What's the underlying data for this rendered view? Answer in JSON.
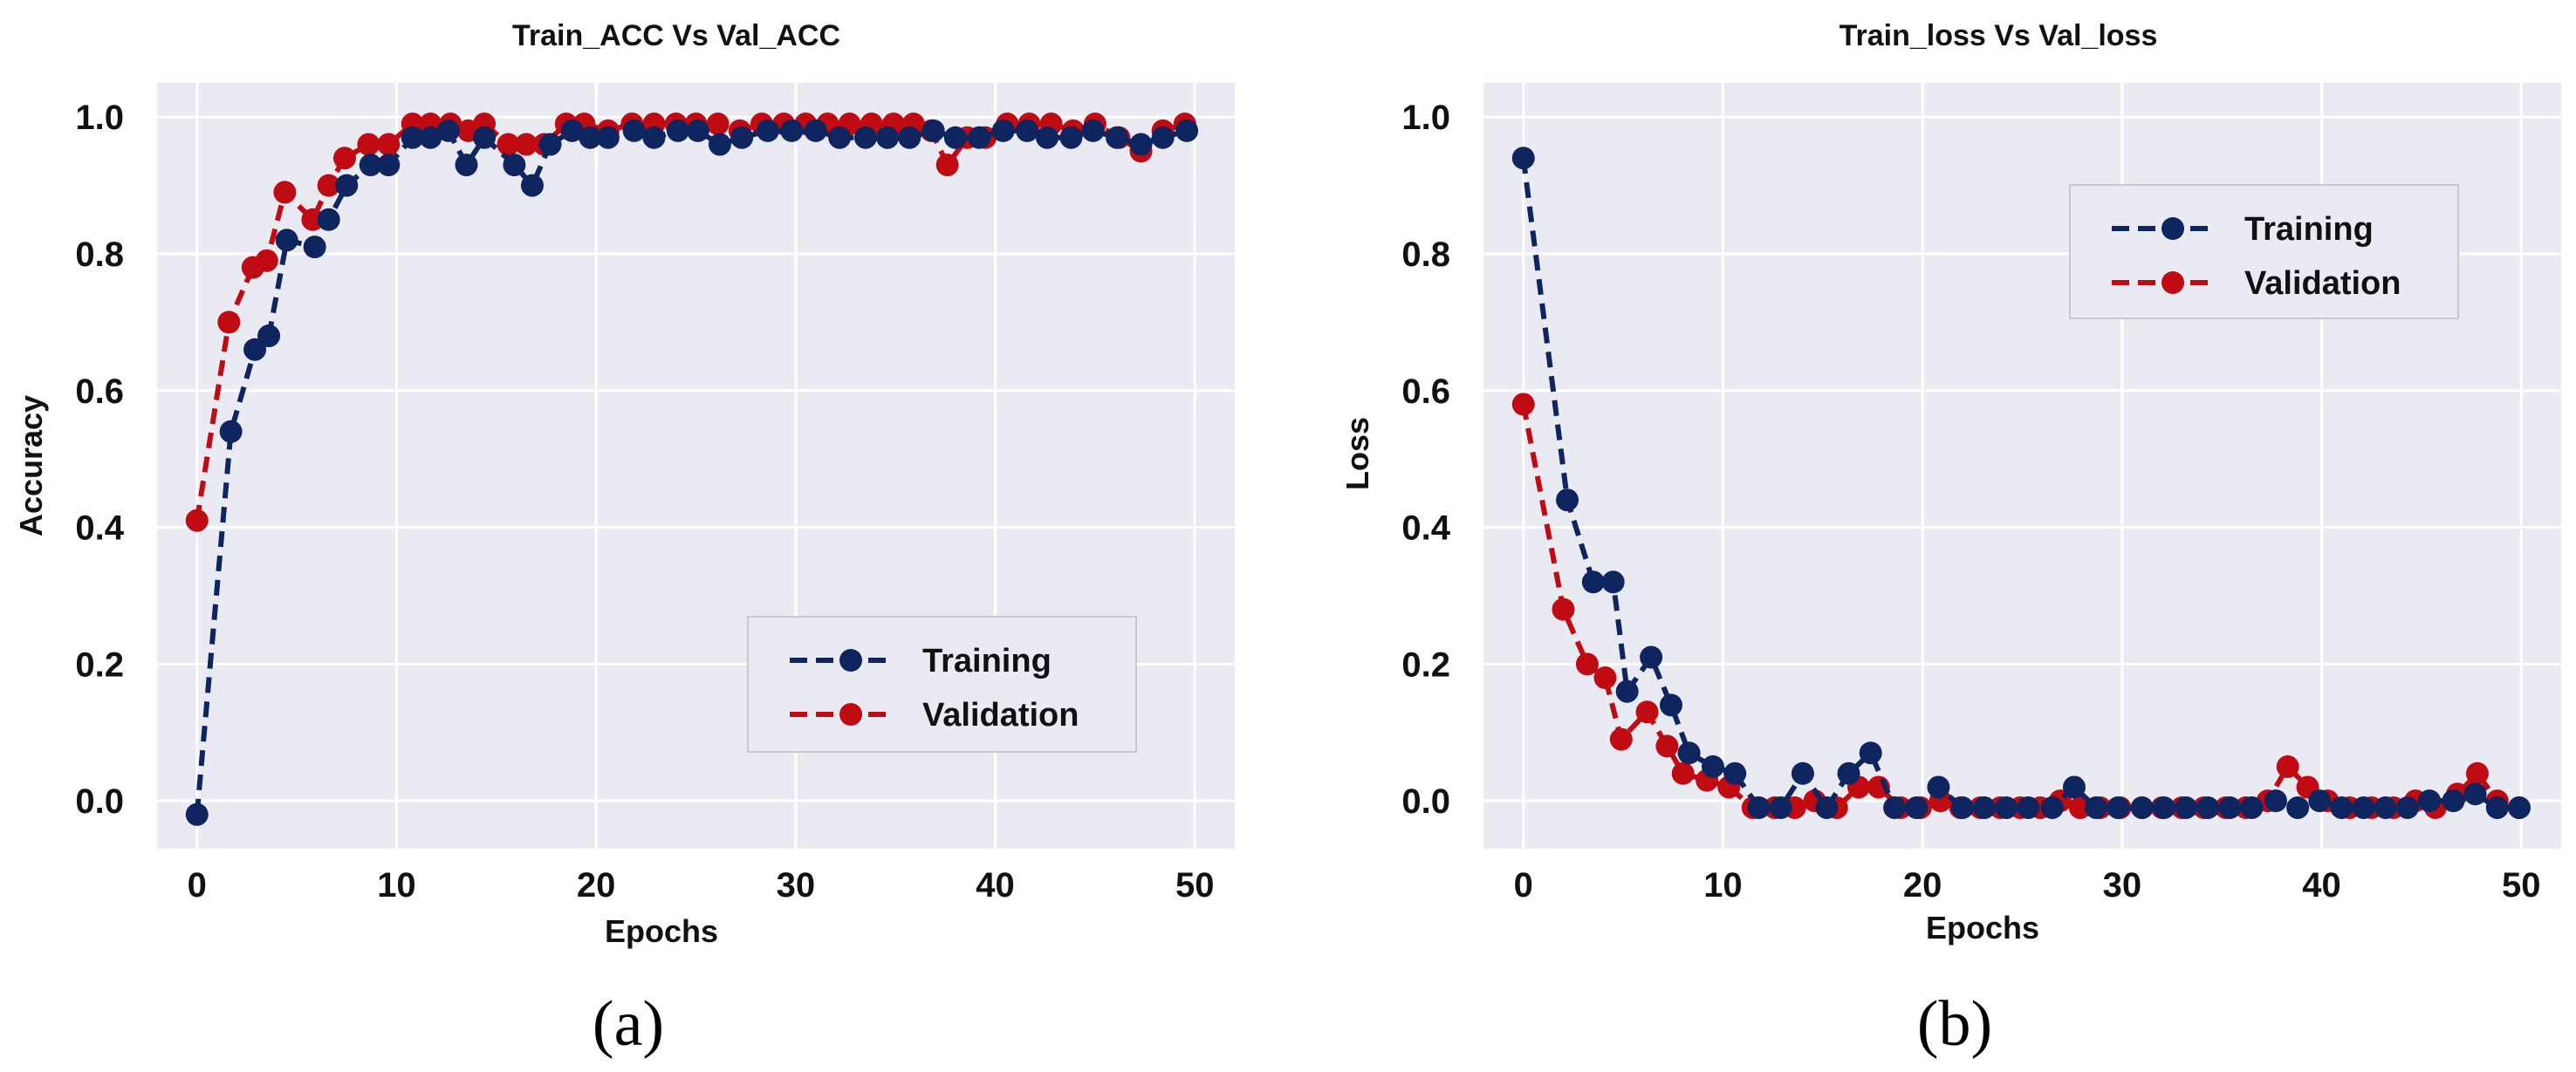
{
  "chart_data": [
    {
      "type": "line",
      "title": "Train_ACC Vs Val_ACC",
      "xlabel": "Epochs",
      "ylabel": "Accuracy",
      "xlim": [
        -2,
        52
      ],
      "ylim": [
        -0.07,
        1.05
      ],
      "xticks": [
        0,
        10,
        20,
        30,
        40,
        50
      ],
      "yticks": [
        0.0,
        0.2,
        0.4,
        0.6,
        0.8,
        1.0
      ],
      "xtick_labels": [
        "0",
        "10",
        "20",
        "30",
        "40",
        "50"
      ],
      "ytick_labels": [
        "0.0",
        "0.2",
        "0.4",
        "0.6",
        "0.8",
        "1.0"
      ],
      "grid": true,
      "legend_position": "lower-right",
      "caption": "(a)",
      "series": [
        {
          "name": "Training",
          "color": "#0f2560",
          "x": [
            0,
            1.7,
            2.9,
            3.6,
            4.5,
            5.9,
            6.6,
            7.5,
            8.7,
            9.6,
            10.8,
            11.7,
            12.6,
            13.5,
            14.4,
            15.9,
            16.8,
            17.7,
            18.8,
            19.7,
            20.6,
            21.9,
            22.9,
            24.1,
            25.1,
            26.2,
            27.3,
            28.6,
            29.8,
            31.0,
            32.2,
            33.5,
            34.6,
            35.7,
            36.9,
            38.0,
            39.2,
            40.4,
            41.6,
            42.6,
            43.8,
            44.9,
            46.1,
            47.3,
            48.4,
            49.6
          ],
          "y": [
            -0.02,
            0.54,
            0.66,
            0.68,
            0.82,
            0.81,
            0.85,
            0.9,
            0.93,
            0.93,
            0.97,
            0.97,
            0.98,
            0.93,
            0.97,
            0.93,
            0.9,
            0.96,
            0.98,
            0.97,
            0.97,
            0.98,
            0.97,
            0.98,
            0.98,
            0.96,
            0.97,
            0.98,
            0.98,
            0.98,
            0.97,
            0.97,
            0.97,
            0.97,
            0.98,
            0.97,
            0.97,
            0.98,
            0.98,
            0.97,
            0.97,
            0.98,
            0.97,
            0.96,
            0.97,
            0.98
          ]
        },
        {
          "name": "Validation",
          "color": "#c00b12",
          "x": [
            0,
            1.6,
            2.8,
            3.5,
            4.4,
            5.8,
            6.6,
            7.4,
            8.6,
            9.6,
            10.8,
            11.7,
            12.7,
            13.6,
            14.4,
            15.6,
            16.5,
            17.4,
            18.5,
            19.4,
            20.6,
            21.8,
            22.9,
            24.0,
            25.0,
            26.1,
            27.2,
            28.3,
            29.4,
            30.5,
            31.6,
            32.7,
            33.8,
            34.9,
            35.9,
            36.8,
            37.6,
            38.6,
            39.5,
            40.6,
            41.7,
            42.8,
            43.9,
            45.0,
            46.2,
            47.3,
            48.4,
            49.5
          ],
          "y": [
            0.41,
            0.7,
            0.78,
            0.79,
            0.89,
            0.85,
            0.9,
            0.94,
            0.96,
            0.96,
            0.99,
            0.99,
            0.99,
            0.98,
            0.99,
            0.96,
            0.96,
            0.96,
            0.99,
            0.99,
            0.98,
            0.99,
            0.99,
            0.99,
            0.99,
            0.99,
            0.98,
            0.99,
            0.99,
            0.99,
            0.99,
            0.99,
            0.99,
            0.99,
            0.99,
            0.98,
            0.93,
            0.97,
            0.97,
            0.99,
            0.99,
            0.99,
            0.98,
            0.99,
            0.97,
            0.95,
            0.98,
            0.99
          ]
        }
      ]
    },
    {
      "type": "line",
      "title": "Train_loss Vs Val_loss",
      "xlabel": "Epochs",
      "ylabel": "Loss",
      "xlim": [
        -2,
        52
      ],
      "ylim": [
        -0.07,
        1.05
      ],
      "xticks": [
        0,
        10,
        20,
        30,
        40,
        50
      ],
      "yticks": [
        0.0,
        0.2,
        0.4,
        0.6,
        0.8,
        1.0
      ],
      "xtick_labels": [
        "0",
        "10",
        "20",
        "30",
        "40",
        "50"
      ],
      "ytick_labels": [
        "0.0",
        "0.2",
        "0.4",
        "0.6",
        "0.8",
        "1.0"
      ],
      "grid": true,
      "legend_position": "upper-right",
      "caption": "(b)",
      "series": [
        {
          "name": "Training",
          "color": "#0f2560",
          "x": [
            0,
            2.2,
            3.5,
            4.5,
            5.2,
            6.4,
            7.4,
            8.3,
            9.5,
            10.6,
            11.8,
            12.9,
            14.0,
            15.2,
            16.3,
            17.4,
            18.6,
            19.7,
            20.8,
            22.0,
            23.1,
            24.2,
            25.3,
            26.5,
            27.6,
            28.7,
            29.8,
            31.0,
            32.1,
            33.2,
            34.3,
            35.4,
            36.5,
            37.7,
            38.8,
            39.9,
            41.0,
            42.1,
            43.2,
            44.3,
            45.4,
            46.6,
            47.7,
            48.8,
            49.9
          ],
          "y": [
            0.94,
            0.44,
            0.32,
            0.32,
            0.16,
            0.21,
            0.14,
            0.07,
            0.05,
            0.04,
            -0.01,
            -0.01,
            0.04,
            -0.01,
            0.04,
            0.07,
            -0.01,
            -0.01,
            0.02,
            -0.01,
            -0.01,
            -0.01,
            -0.01,
            -0.01,
            0.02,
            -0.01,
            -0.01,
            -0.01,
            -0.01,
            -0.01,
            -0.01,
            -0.01,
            -0.01,
            0.0,
            -0.01,
            0.0,
            -0.01,
            -0.01,
            -0.01,
            -0.01,
            0.0,
            0.0,
            0.01,
            -0.01,
            -0.01
          ]
        },
        {
          "name": "Validation",
          "color": "#c00b12",
          "x": [
            0,
            2.0,
            3.2,
            4.1,
            4.9,
            6.2,
            7.2,
            8.0,
            9.2,
            10.3,
            11.5,
            12.6,
            13.6,
            14.6,
            15.7,
            16.8,
            17.8,
            18.9,
            19.9,
            20.9,
            21.9,
            22.9,
            23.9,
            24.9,
            25.9,
            26.9,
            27.9,
            28.9,
            29.9,
            31.0,
            32.0,
            33.0,
            34.1,
            35.2,
            36.2,
            37.3,
            38.3,
            39.3,
            40.3,
            41.4,
            42.5,
            43.6,
            44.7,
            45.7,
            46.8,
            47.8,
            48.8,
            49.9
          ],
          "y": [
            0.58,
            0.28,
            0.2,
            0.18,
            0.09,
            0.13,
            0.08,
            0.04,
            0.03,
            0.02,
            -0.01,
            -0.01,
            -0.01,
            0.0,
            -0.01,
            0.02,
            0.02,
            -0.01,
            -0.01,
            0.0,
            -0.01,
            -0.01,
            -0.01,
            -0.01,
            -0.01,
            0.0,
            -0.01,
            -0.01,
            -0.01,
            -0.01,
            -0.01,
            -0.01,
            -0.01,
            -0.01,
            -0.01,
            0.0,
            0.05,
            0.02,
            0.0,
            -0.01,
            -0.01,
            -0.01,
            0.0,
            -0.01,
            0.01,
            0.04,
            0.0,
            -0.01
          ]
        }
      ]
    }
  ]
}
